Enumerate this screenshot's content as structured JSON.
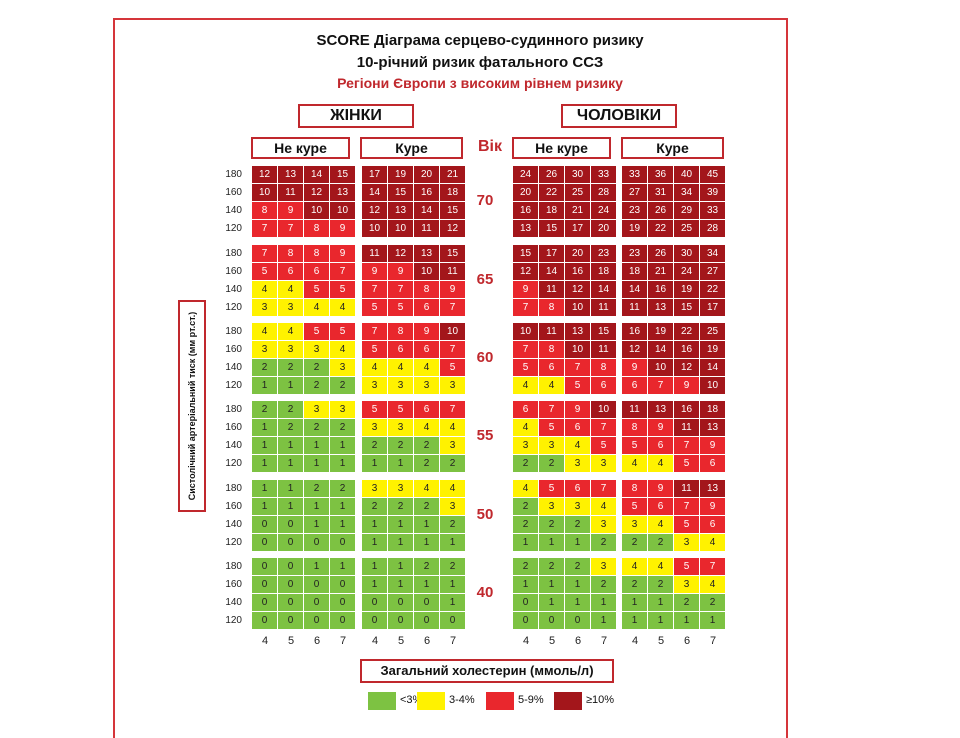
{
  "titles": {
    "line1": "SCORE Діаграма серцево-судинного ризику",
    "line2": "10-річний ризик фатального ССЗ",
    "line3": "Регіони Європи з високим рівнем ризику"
  },
  "labels": {
    "women": "ЖІНКИ",
    "men": "ЧОЛОВІКИ",
    "non_smoker": "Не куре",
    "smoker": "Куре",
    "age": "Вік",
    "y_axis": "Систолічний артеріальний тиск (мм рт.ст.)",
    "x_axis": "Загальний холестерин (ммоль/л)"
  },
  "colors": {
    "green": "#7dc242",
    "yellow": "#fff200",
    "red": "#e9272d",
    "darkred": "#a3161b",
    "accent": "#c0282d"
  },
  "legend": [
    {
      "label": "<3%",
      "color": "#7dc242"
    },
    {
      "label": "3-4%",
      "color": "#fff200"
    },
    {
      "label": "5-9%",
      "color": "#e9272d"
    },
    {
      "label": "≥10%",
      "color": "#a3161b"
    }
  ],
  "chart_data": {
    "type": "heatmap",
    "title": "SCORE Діаграма серцево-судинного ризику",
    "subtitle": "10-річний ризик фатального ССЗ",
    "xlabel": "Загальний холестерин (ммоль/л)",
    "ylabel": "Систолічний артеріальний тиск (мм рт.ст.)",
    "cholesterol": [
      4,
      5,
      6,
      7
    ],
    "sbp": [
      180,
      160,
      140,
      120
    ],
    "ages": [
      70,
      65,
      60,
      55,
      50,
      40
    ],
    "groups": [
      "Жінки / Не куре",
      "Жінки / Куре",
      "Чоловіки / Не куре",
      "Чоловіки / Куре"
    ],
    "values": [
      [
        [
          [
            12,
            13,
            14,
            15
          ],
          [
            10,
            11,
            12,
            13
          ],
          [
            8,
            9,
            10,
            10
          ],
          [
            7,
            7,
            8,
            9
          ]
        ],
        [
          [
            17,
            19,
            20,
            21
          ],
          [
            14,
            15,
            16,
            18
          ],
          [
            12,
            13,
            14,
            15
          ],
          [
            10,
            10,
            11,
            12
          ]
        ],
        [
          [
            24,
            26,
            30,
            33
          ],
          [
            20,
            22,
            25,
            28
          ],
          [
            16,
            18,
            21,
            24
          ],
          [
            13,
            15,
            17,
            20
          ]
        ],
        [
          [
            33,
            36,
            40,
            45
          ],
          [
            27,
            31,
            34,
            39
          ],
          [
            23,
            26,
            29,
            33
          ],
          [
            19,
            22,
            25,
            28
          ]
        ]
      ],
      [
        [
          [
            7,
            8,
            8,
            9
          ],
          [
            5,
            6,
            6,
            7
          ],
          [
            4,
            4,
            5,
            5
          ],
          [
            3,
            3,
            4,
            4
          ]
        ],
        [
          [
            11,
            12,
            13,
            15
          ],
          [
            9,
            9,
            10,
            11
          ],
          [
            7,
            7,
            8,
            9
          ],
          [
            5,
            5,
            6,
            7
          ]
        ],
        [
          [
            15,
            17,
            20,
            23
          ],
          [
            12,
            14,
            16,
            18
          ],
          [
            9,
            11,
            12,
            14
          ],
          [
            7,
            8,
            10,
            11
          ]
        ],
        [
          [
            23,
            26,
            30,
            34
          ],
          [
            18,
            21,
            24,
            27
          ],
          [
            14,
            16,
            19,
            22
          ],
          [
            11,
            13,
            15,
            17
          ]
        ]
      ],
      [
        [
          [
            4,
            4,
            5,
            5
          ],
          [
            3,
            3,
            3,
            4
          ],
          [
            2,
            2,
            2,
            3
          ],
          [
            1,
            1,
            2,
            2
          ]
        ],
        [
          [
            7,
            8,
            9,
            10
          ],
          [
            5,
            6,
            6,
            7
          ],
          [
            4,
            4,
            4,
            5
          ],
          [
            3,
            3,
            3,
            3
          ]
        ],
        [
          [
            10,
            11,
            13,
            15
          ],
          [
            7,
            8,
            10,
            11
          ],
          [
            5,
            6,
            7,
            8
          ],
          [
            4,
            4,
            5,
            6
          ]
        ],
        [
          [
            16,
            19,
            22,
            25
          ],
          [
            12,
            14,
            16,
            19
          ],
          [
            9,
            10,
            12,
            14
          ],
          [
            6,
            7,
            9,
            10
          ]
        ]
      ],
      [
        [
          [
            2,
            2,
            3,
            3
          ],
          [
            1,
            2,
            2,
            2
          ],
          [
            1,
            1,
            1,
            1
          ],
          [
            1,
            1,
            1,
            1
          ]
        ],
        [
          [
            5,
            5,
            6,
            7
          ],
          [
            3,
            3,
            4,
            4
          ],
          [
            2,
            2,
            2,
            3
          ],
          [
            1,
            1,
            2,
            2
          ]
        ],
        [
          [
            6,
            7,
            9,
            10
          ],
          [
            4,
            5,
            6,
            7
          ],
          [
            3,
            3,
            4,
            5
          ],
          [
            2,
            2,
            3,
            3
          ]
        ],
        [
          [
            11,
            13,
            16,
            18
          ],
          [
            8,
            9,
            11,
            13
          ],
          [
            5,
            6,
            7,
            9
          ],
          [
            4,
            4,
            5,
            6
          ]
        ]
      ],
      [
        [
          [
            1,
            1,
            2,
            2
          ],
          [
            1,
            1,
            1,
            1
          ],
          [
            0,
            0,
            1,
            1
          ],
          [
            0,
            0,
            0,
            0
          ]
        ],
        [
          [
            3,
            3,
            4,
            4
          ],
          [
            2,
            2,
            2,
            3
          ],
          [
            1,
            1,
            1,
            2
          ],
          [
            1,
            1,
            1,
            1
          ]
        ],
        [
          [
            4,
            5,
            6,
            7
          ],
          [
            2,
            3,
            3,
            4
          ],
          [
            2,
            2,
            2,
            3
          ],
          [
            1,
            1,
            1,
            2
          ]
        ],
        [
          [
            8,
            9,
            11,
            13
          ],
          [
            5,
            6,
            7,
            9
          ],
          [
            3,
            4,
            5,
            6
          ],
          [
            2,
            2,
            3,
            4
          ]
        ]
      ],
      [
        [
          [
            0,
            0,
            1,
            1
          ],
          [
            0,
            0,
            0,
            0
          ],
          [
            0,
            0,
            0,
            0
          ],
          [
            0,
            0,
            0,
            0
          ]
        ],
        [
          [
            1,
            1,
            2,
            2
          ],
          [
            1,
            1,
            1,
            1
          ],
          [
            0,
            0,
            0,
            1
          ],
          [
            0,
            0,
            0,
            0
          ]
        ],
        [
          [
            2,
            2,
            2,
            3
          ],
          [
            1,
            1,
            1,
            2
          ],
          [
            0,
            1,
            1,
            1
          ],
          [
            0,
            0,
            0,
            1
          ]
        ],
        [
          [
            4,
            4,
            5,
            7
          ],
          [
            2,
            2,
            3,
            4
          ],
          [
            1,
            1,
            2,
            2
          ],
          [
            1,
            1,
            1,
            1
          ]
        ]
      ]
    ],
    "legend": [
      "<3%",
      "3-4%",
      "5-9%",
      "≥10%"
    ]
  }
}
